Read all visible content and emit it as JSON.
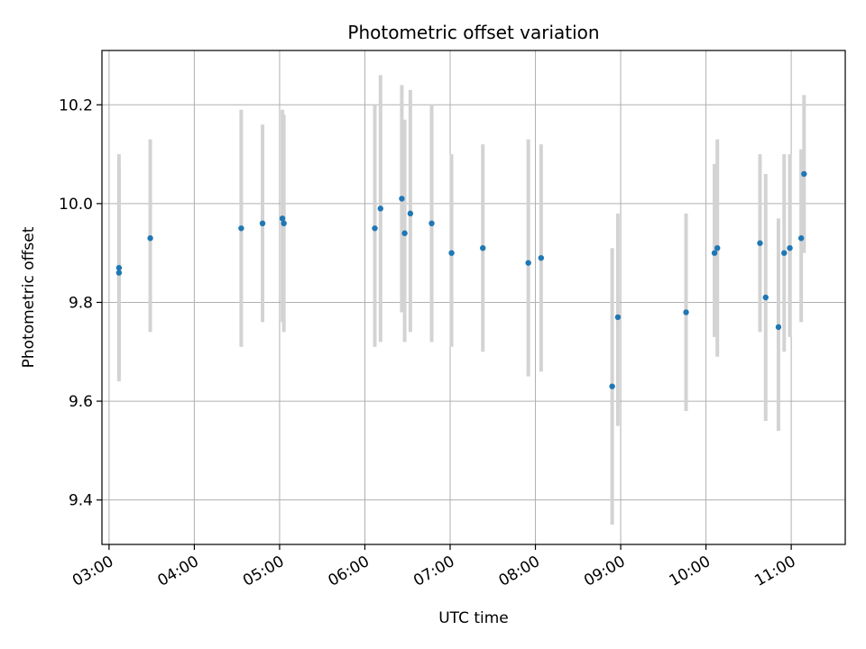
{
  "chart_data": {
    "type": "scatter",
    "title": "Photometric offset variation",
    "xlabel": "UTC time",
    "ylabel": "Photometric offset",
    "xlim": [
      "02:55",
      "11:38"
    ],
    "ylim": [
      9.31,
      10.31
    ],
    "x_ticks": [
      "03:00",
      "04:00",
      "05:00",
      "06:00",
      "07:00",
      "08:00",
      "09:00",
      "10:00",
      "11:00"
    ],
    "y_ticks": [
      9.4,
      9.6,
      9.8,
      10.0,
      10.2
    ],
    "y_tick_labels": [
      "9.4",
      "9.6",
      "9.8",
      "10.0",
      "10.2"
    ],
    "grid": true,
    "marker_color": "#1f77b4",
    "errorbar_color": "#d3d3d3",
    "points": [
      {
        "x": "03:07",
        "y": 9.87,
        "ylow": 9.65,
        "yhigh": 10.1
      },
      {
        "x": "03:07",
        "y": 9.86,
        "ylow": 9.64,
        "yhigh": 10.08
      },
      {
        "x": "03:29",
        "y": 9.93,
        "ylow": 9.74,
        "yhigh": 10.13
      },
      {
        "x": "04:33",
        "y": 9.95,
        "ylow": 9.71,
        "yhigh": 10.19
      },
      {
        "x": "04:48",
        "y": 9.96,
        "ylow": 9.76,
        "yhigh": 10.16
      },
      {
        "x": "05:02",
        "y": 9.97,
        "ylow": 9.76,
        "yhigh": 10.19
      },
      {
        "x": "05:03",
        "y": 9.96,
        "ylow": 9.74,
        "yhigh": 10.18
      },
      {
        "x": "06:07",
        "y": 9.95,
        "ylow": 9.71,
        "yhigh": 10.2
      },
      {
        "x": "06:11",
        "y": 9.99,
        "ylow": 9.72,
        "yhigh": 10.26
      },
      {
        "x": "06:26",
        "y": 10.01,
        "ylow": 9.78,
        "yhigh": 10.24
      },
      {
        "x": "06:28",
        "y": 9.94,
        "ylow": 9.72,
        "yhigh": 10.17
      },
      {
        "x": "06:32",
        "y": 9.98,
        "ylow": 9.74,
        "yhigh": 10.23
      },
      {
        "x": "06:47",
        "y": 9.96,
        "ylow": 9.72,
        "yhigh": 10.2
      },
      {
        "x": "07:01",
        "y": 9.9,
        "ylow": 9.71,
        "yhigh": 10.1
      },
      {
        "x": "07:23",
        "y": 9.91,
        "ylow": 9.7,
        "yhigh": 10.12
      },
      {
        "x": "07:55",
        "y": 9.88,
        "ylow": 9.65,
        "yhigh": 10.13
      },
      {
        "x": "08:04",
        "y": 9.89,
        "ylow": 9.66,
        "yhigh": 10.12
      },
      {
        "x": "08:54",
        "y": 9.63,
        "ylow": 9.35,
        "yhigh": 9.91
      },
      {
        "x": "08:58",
        "y": 9.77,
        "ylow": 9.55,
        "yhigh": 9.98
      },
      {
        "x": "09:46",
        "y": 9.78,
        "ylow": 9.58,
        "yhigh": 9.98
      },
      {
        "x": "10:06",
        "y": 9.9,
        "ylow": 9.73,
        "yhigh": 10.08
      },
      {
        "x": "10:08",
        "y": 9.91,
        "ylow": 9.69,
        "yhigh": 10.13
      },
      {
        "x": "10:38",
        "y": 9.92,
        "ylow": 9.74,
        "yhigh": 10.1
      },
      {
        "x": "10:42",
        "y": 9.81,
        "ylow": 9.56,
        "yhigh": 10.06
      },
      {
        "x": "10:51",
        "y": 9.75,
        "ylow": 9.54,
        "yhigh": 9.97
      },
      {
        "x": "10:55",
        "y": 9.9,
        "ylow": 9.7,
        "yhigh": 10.1
      },
      {
        "x": "10:59",
        "y": 9.91,
        "ylow": 9.73,
        "yhigh": 10.1
      },
      {
        "x": "11:07",
        "y": 9.93,
        "ylow": 9.76,
        "yhigh": 10.11
      },
      {
        "x": "11:09",
        "y": 10.06,
        "ylow": 9.9,
        "yhigh": 10.22
      }
    ]
  }
}
